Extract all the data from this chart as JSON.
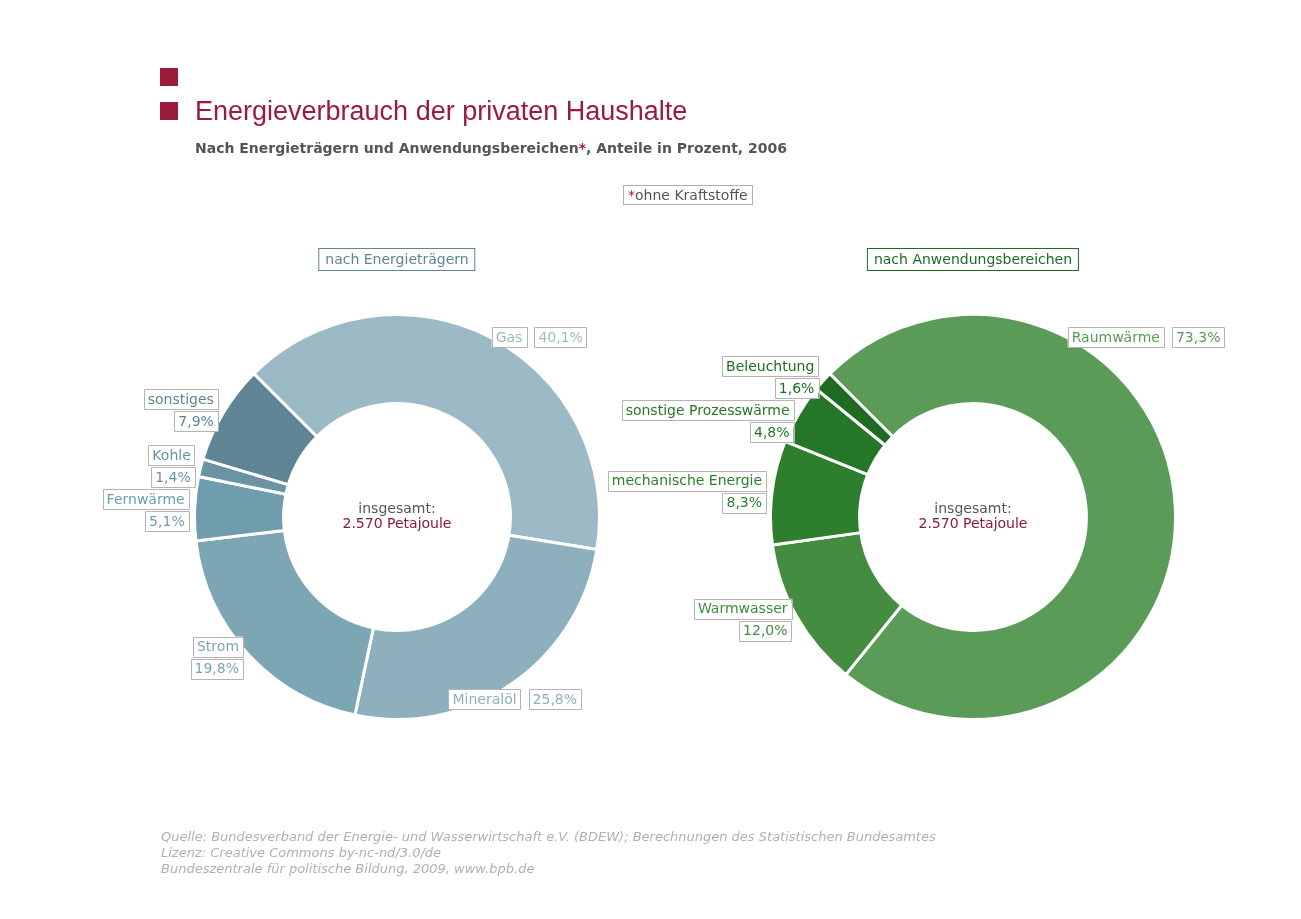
{
  "chart_data": [
    {
      "type": "other",
      "title": "Energieverbrauch der privaten Haushalte",
      "subtitle": "Nach Energieträgern und Anwendungsbereichen*, Anteile in Prozent, 2006",
      "annotations": [
        "*ohne Kraftstoffe",
        "Quelle: Bundesverband der Energie- und Wasserwirtschaft e.V. (BDEW); Berechnungen des Statistischen Bundesamtes",
        "Lizenz: Creative Commons by-nc-nd/3.0/de",
        "Bundeszentrale für politische Bildung, 2009, www.bpb.de"
      ]
    },
    {
      "type": "donut",
      "title": "nach Energieträgern",
      "categories": [
        "Gas",
        "Mineralöl",
        "Strom",
        "Fernwärme",
        "Kohle",
        "sonstiges"
      ],
      "values": [
        40.1,
        25.8,
        19.8,
        5.1,
        1.4,
        7.9
      ],
      "colors": [
        "#9bbac6",
        "#8db0bc",
        "#7da6b5",
        "#6f9dae",
        "#6a93a3",
        "#5f8494"
      ],
      "value_labels": [
        "40,1%",
        "25,8%",
        "19,8%",
        "5,1%",
        "1,4%",
        "7,9%"
      ],
      "annotations": [
        "insgesamt:",
        "2.570 Petajoule"
      ]
    },
    {
      "type": "donut",
      "title": "nach Anwendungsbereichen",
      "categories": [
        "Raumwärme",
        "Warmwasser",
        "mechanische Energie",
        "sonstige Prozesswärme",
        "Beleuchtung"
      ],
      "values": [
        73.3,
        12.0,
        8.3,
        4.8,
        1.6
      ],
      "colors": [
        "#5a9b58",
        "#448c40",
        "#2d7f2d",
        "#267628",
        "#1f6b24"
      ],
      "value_labels": [
        "73,3%",
        "12,0%",
        "8,3%",
        "4,8%",
        "1,6%"
      ],
      "annotations": [
        "insgesamt:",
        "2.570 Petajoule"
      ]
    }
  ]
}
